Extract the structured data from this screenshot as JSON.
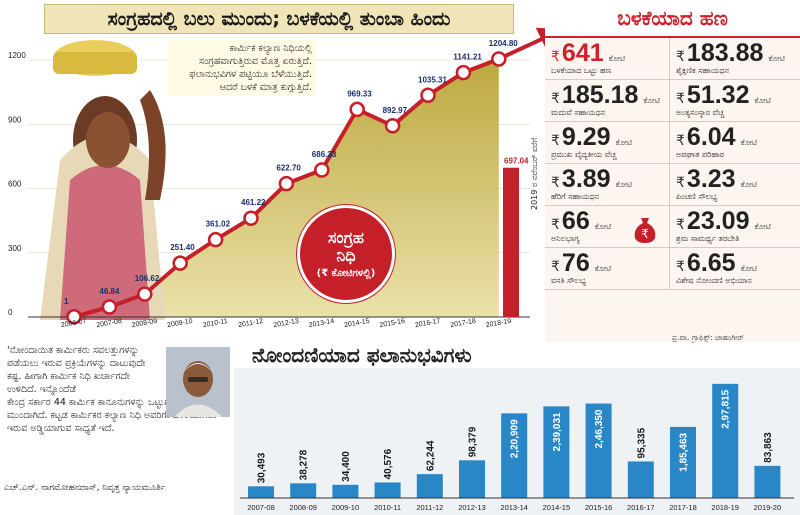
{
  "title": "ಸಂಗ್ರಹದಲ್ಲಿ ಬಲು ಮುಂದು; ಬಳಕೆಯಲ್ಲಿ ತುಂಬಾ ಹಿಂದು",
  "note": "ಕಾರ್ಮಿಕ ಕಲ್ಯಾಣ ನಿಧಿಯಲ್ಲಿ ಸಂಗ್ರಹವಾಗುತ್ತಿರುವ ಮೊತ್ತ ಏರುತ್ತಿದೆ. ಫಲಾನುಭವಿಗಳ ಪಟ್ಟಿಯೂ ಬೆಳೆಯುತ್ತಿದೆ. ಆದರೆ ಬಳಕೆ ಮಾತ್ರ ಕುಗ್ಗುತ್ತಿದೆ.",
  "fund_circle": {
    "line1": "ಸಂಗ್ರಹ",
    "line2": "ನಿಧಿ",
    "line3": "(₹ ಕೋಟಿಗಳಲ್ಲಿ)"
  },
  "side_bar_label": "2019 ರ ನವೆಂಬರ್ ವರೆಗೆ",
  "right_panel": {
    "header": "ಬಳಕೆಯಾದ ಹಣ",
    "currency": "₹",
    "unit": "ಕೋಟಿ",
    "items": [
      {
        "value": "641",
        "label": "ಬಳಕೆಯಾದ ಒಟ್ಟು ಹಣ"
      },
      {
        "value": "183.88",
        "label": "ಶೈಕ್ಷಣಿಕ ಸಹಾಯಧನ"
      },
      {
        "value": "185.18",
        "label": "ಮದುವೆ ಸಹಾಯಧನ"
      },
      {
        "value": "51.32",
        "label": "ಅಂತ್ಯಸಂಸ್ಕಾರ ವೆಚ್ಚ"
      },
      {
        "value": "9.29",
        "label": "ಪ್ರಮುಖ ವೈದ್ಯಕೀಯ ವೆಚ್ಚ"
      },
      {
        "value": "6.04",
        "label": "ಅಪಘಾತ ಪರಿಹಾರ"
      },
      {
        "value": "3.89",
        "label": "ಹೆರಿಗೆ ಸಹಾಯಧನ"
      },
      {
        "value": "3.23",
        "label": "ಪಿಂಚಣಿ ಸೌಲಭ್ಯ"
      },
      {
        "value": "66",
        "label": "ಅನಿಲಭಾಗ್ಯ"
      },
      {
        "value": "23.09",
        "label": "ಶ್ರಮ ಸಾಮರ್ಥ್ಯ ತರಬೇತಿ"
      },
      {
        "value": "76",
        "label": "ವಸತಿ ಸೌಲಭ್ಯ"
      },
      {
        "value": "6.65",
        "label": "ವಿಶೇಷ ನೋಂದಣಿ ಅಭಿಯಾನ"
      }
    ],
    "colors": {
      "accent": "#d0202b",
      "text": "#222222"
    }
  },
  "credit": "ಪ್ರ.ವಾ. ಗ್ರಾಫಿಕ್ಸ್: ಜಾಹಂಗೀರ್",
  "quote": {
    "text_narrow": "'ನೋಂದಾಯಿತ ಕಾರ್ಮಿಕರು ಸವಲತ್ತುಗಳನ್ನು ಪಡೆಯಲು ಇರುವ ಪ್ರಕ್ರಿಯೆಗಳನ್ನು ದಾಟುವುದೇ ಕಷ್ಟ. ಹೀಗಾಗಿ ಕಾರ್ಮಿಕ ನಿಧಿ ಖರ್ಚಾಗದೇ ಉಳಿದಿದೆ. ಇನ್ನೊಂದೆಡೆ",
    "text_wide": "ಕೇಂದ್ರ ಸರ್ಕಾರ 44 ಕಾರ್ಮಿಕ ಕಾನೂನುಗಳನ್ನು ಒಟ್ಟುಗೂಡಿಸಲು ಮುಂದಾಗಿದೆ. ಕಟ್ಟಡ ಕಾರ್ಮಿಕರ ಕಲ್ಯಾಣ ನಿಧಿ ಅವರಿಗೇ ಬಳಕೆಯಾಗಲು ಇರುವ ಅಡ್ಡಿಯಾಗುವ ಸಾಧ್ಯತೆ ಇದೆ.",
    "author": "ಎಚ್.ಎನ್. ನಾಗಮೋಹನದಾಸ್, ನಿವೃತ್ತ ನ್ಯಾಯಮೂರ್ತಿ"
  },
  "chart_data": [
    {
      "type": "line",
      "title": "ಸಂಗ್ರಹ ನಿಧಿ (₹ ಕೋಟಿಗಳಲ್ಲಿ)",
      "x": [
        "2006-07",
        "2007-08",
        "2008-09",
        "2009-10",
        "2010-11",
        "2011-12",
        "2012-13",
        "2013-14",
        "2014-15",
        "2015-16",
        "2016-17",
        "2017-18",
        "2018-19"
      ],
      "values": [
        1,
        46.84,
        106.62,
        251.4,
        361.02,
        461.22,
        622.7,
        686.33,
        969.33,
        892.97,
        1035.31,
        1141.21,
        1204.8
      ],
      "value_labels": [
        "1",
        "46.84",
        "106.62",
        "251.40",
        "361.02",
        "461.22",
        "622.70",
        "686.33",
        "969.33",
        "892.97",
        "1035.31",
        "1141.21",
        "1204.80"
      ],
      "extra_bar": {
        "x": "2018-19",
        "value": 697.04,
        "label": "697.04",
        "note": "2019 ರ ನವೆಂಬರ್ ವರೆಗೆ"
      },
      "yticks": [
        0,
        300,
        600,
        900,
        1200
      ],
      "ylim": [
        0,
        1300
      ],
      "colors": {
        "line": "#c51f2a",
        "bar": "#c51f2a",
        "fill": "#c9b23a"
      }
    },
    {
      "type": "bar",
      "title": "ನೋಂದಣಿಯಾದ ಫಲಾನುಭವಿಗಳು",
      "categories": [
        "2007-08",
        "2008-09",
        "2009-10",
        "2010-11",
        "2011-12",
        "2012-13",
        "2013-14",
        "2014-15",
        "2015-16",
        "2016-17",
        "2017-18",
        "2018-19",
        "2019-20"
      ],
      "values": [
        30493,
        38278,
        34400,
        40576,
        62244,
        98379,
        220909,
        239031,
        246350,
        95335,
        185463,
        297815,
        83863
      ],
      "value_labels": [
        "30,493",
        "38,278",
        "34,400",
        "40,576",
        "62,244",
        "98,379",
        "2,20,909",
        "2,39,031",
        "2,46,350",
        "95,335",
        "1,85,463",
        "2,97,815",
        "83,863"
      ],
      "ylim": [
        0,
        300000
      ],
      "colors": {
        "bar": "#2a87c7"
      }
    }
  ]
}
